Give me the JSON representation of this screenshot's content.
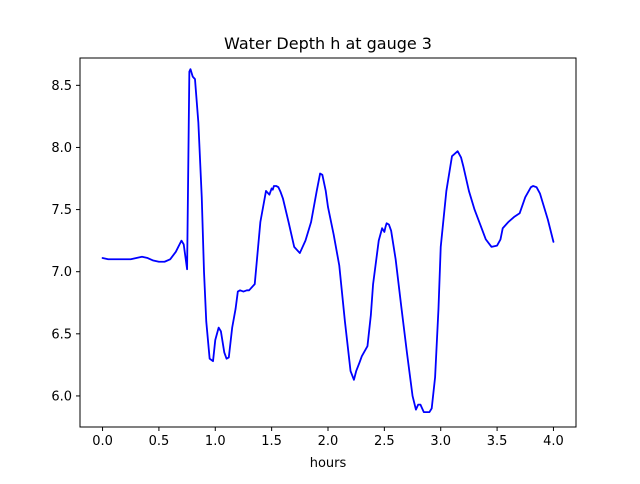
{
  "chart_data": {
    "type": "line",
    "title": "Water Depth h at gauge 3",
    "xlabel": "hours",
    "ylabel": "",
    "xlim": [
      -0.2,
      4.2
    ],
    "ylim": [
      5.75,
      8.72
    ],
    "x_ticks": [
      0.0,
      0.5,
      1.0,
      1.5,
      2.0,
      2.5,
      3.0,
      3.5,
      4.0
    ],
    "x_tick_labels": [
      "0.0",
      "0.5",
      "1.0",
      "1.5",
      "2.0",
      "2.5",
      "3.0",
      "3.5",
      "4.0"
    ],
    "y_ticks": [
      6.0,
      6.5,
      7.0,
      7.5,
      8.0,
      8.5
    ],
    "y_tick_labels": [
      "6.0",
      "6.5",
      "7.0",
      "7.5",
      "8.0",
      "8.5"
    ],
    "grid": false,
    "legend": "none",
    "series": [
      {
        "color": "#0000ff",
        "x": [
          0.0,
          0.05,
          0.1,
          0.15,
          0.2,
          0.25,
          0.3,
          0.35,
          0.4,
          0.45,
          0.5,
          0.55,
          0.6,
          0.65,
          0.7,
          0.72,
          0.75,
          0.77,
          0.78,
          0.8,
          0.82,
          0.85,
          0.88,
          0.9,
          0.92,
          0.95,
          0.98,
          1.0,
          1.03,
          1.05,
          1.08,
          1.1,
          1.12,
          1.15,
          1.18,
          1.2,
          1.22,
          1.25,
          1.28,
          1.3,
          1.35,
          1.38,
          1.4,
          1.43,
          1.45,
          1.48,
          1.5,
          1.51,
          1.52,
          1.54,
          1.56,
          1.58,
          1.6,
          1.65,
          1.7,
          1.75,
          1.8,
          1.85,
          1.9,
          1.93,
          1.95,
          1.98,
          2.0,
          2.05,
          2.1,
          2.15,
          2.2,
          2.23,
          2.25,
          2.28,
          2.3,
          2.35,
          2.38,
          2.4,
          2.45,
          2.48,
          2.5,
          2.51,
          2.52,
          2.54,
          2.56,
          2.6,
          2.65,
          2.7,
          2.75,
          2.78,
          2.8,
          2.82,
          2.83,
          2.85,
          2.87,
          2.9,
          2.92,
          2.95,
          2.98,
          3.0,
          3.05,
          3.1,
          3.15,
          3.18,
          3.2,
          3.25,
          3.3,
          3.35,
          3.4,
          3.45,
          3.5,
          3.53,
          3.55,
          3.6,
          3.65,
          3.7,
          3.75,
          3.8,
          3.82,
          3.85,
          3.88,
          3.9,
          3.95,
          4.0
        ],
        "y": [
          7.11,
          7.1,
          7.1,
          7.1,
          7.1,
          7.1,
          7.11,
          7.12,
          7.11,
          7.09,
          7.08,
          7.08,
          7.1,
          7.16,
          7.25,
          7.22,
          7.02,
          8.61,
          8.63,
          8.57,
          8.55,
          8.2,
          7.6,
          7.0,
          6.6,
          6.3,
          6.28,
          6.45,
          6.55,
          6.52,
          6.35,
          6.3,
          6.31,
          6.55,
          6.7,
          6.84,
          6.85,
          6.84,
          6.85,
          6.85,
          6.9,
          7.2,
          7.4,
          7.55,
          7.65,
          7.62,
          7.67,
          7.66,
          7.69,
          7.69,
          7.68,
          7.64,
          7.59,
          7.4,
          7.2,
          7.15,
          7.25,
          7.4,
          7.65,
          7.79,
          7.78,
          7.65,
          7.52,
          7.3,
          7.05,
          6.6,
          6.2,
          6.13,
          6.2,
          6.27,
          6.32,
          6.4,
          6.65,
          6.9,
          7.25,
          7.35,
          7.32,
          7.36,
          7.39,
          7.38,
          7.33,
          7.1,
          6.72,
          6.35,
          6.0,
          5.89,
          5.93,
          5.93,
          5.91,
          5.87,
          5.87,
          5.87,
          5.9,
          6.15,
          6.7,
          7.2,
          7.65,
          7.93,
          7.97,
          7.92,
          7.85,
          7.65,
          7.5,
          7.38,
          7.26,
          7.2,
          7.21,
          7.26,
          7.35,
          7.4,
          7.44,
          7.47,
          7.6,
          7.68,
          7.69,
          7.68,
          7.63,
          7.57,
          7.42,
          7.24
        ]
      }
    ]
  }
}
